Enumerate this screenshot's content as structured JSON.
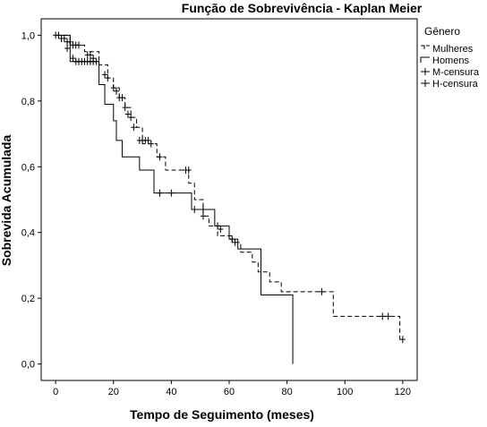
{
  "chart_data": {
    "type": "line",
    "title": "Função de Sobrevivência - Kaplan Meier",
    "xlabel": "Tempo de Seguimento (meses)",
    "ylabel": "Sobrevida Acumulada",
    "xlim": [
      -5,
      125
    ],
    "ylim": [
      -0.05,
      1.05
    ],
    "x_ticks": [
      0,
      20,
      40,
      60,
      80,
      100,
      120
    ],
    "x_tick_labels": [
      "0",
      "20",
      "40",
      "60",
      "80",
      "100",
      "120"
    ],
    "y_ticks": [
      0.0,
      0.2,
      0.4,
      0.6,
      0.8,
      1.0
    ],
    "y_tick_labels": [
      "0,0",
      "0,2",
      "0,4",
      "0,6",
      "0,8",
      "1,0"
    ],
    "legend_title": "Gênero",
    "legend_position": "top-right",
    "grid": false,
    "series": [
      {
        "name": "Mulheres",
        "line": "dashed",
        "x": [
          0,
          5,
          10,
          15,
          18,
          20,
          22,
          24,
          26,
          28,
          30,
          35,
          38,
          46,
          48,
          51,
          53,
          56,
          61,
          64,
          68,
          70,
          74,
          78,
          80,
          96,
          119,
          120
        ],
        "y": [
          1.0,
          0.97,
          0.95,
          0.91,
          0.87,
          0.84,
          0.81,
          0.78,
          0.75,
          0.72,
          0.67,
          0.63,
          0.59,
          0.55,
          0.5,
          0.45,
          0.42,
          0.39,
          0.37,
          0.34,
          0.31,
          0.28,
          0.25,
          0.22,
          0.22,
          0.145,
          0.075,
          0.075
        ]
      },
      {
        "name": "Homens",
        "line": "solid",
        "x": [
          0,
          5,
          15,
          17,
          20,
          21,
          23,
          29,
          34,
          47,
          55,
          60,
          63,
          71,
          82,
          82
        ],
        "y": [
          1.0,
          0.92,
          0.85,
          0.79,
          0.74,
          0.68,
          0.63,
          0.59,
          0.52,
          0.47,
          0.42,
          0.38,
          0.35,
          0.21,
          0.21,
          0.0
        ]
      },
      {
        "name": "M-censura",
        "marker": "+",
        "x": [
          0,
          1,
          2,
          3,
          4,
          5,
          6,
          7,
          8,
          11,
          12,
          13,
          17,
          18,
          20,
          21,
          22,
          23,
          24,
          25,
          26,
          27,
          29,
          30,
          31,
          32,
          33,
          36,
          45,
          46,
          51,
          56,
          62,
          92,
          113,
          115,
          120
        ],
        "y": [
          1.0,
          1.0,
          0.99,
          0.99,
          0.98,
          0.98,
          0.97,
          0.97,
          0.97,
          0.94,
          0.94,
          0.93,
          0.88,
          0.87,
          0.84,
          0.83,
          0.81,
          0.81,
          0.78,
          0.76,
          0.75,
          0.72,
          0.68,
          0.68,
          0.68,
          0.68,
          0.67,
          0.63,
          0.59,
          0.59,
          0.45,
          0.42,
          0.37,
          0.22,
          0.145,
          0.145,
          0.075
        ]
      },
      {
        "name": "H-censura",
        "marker": "+",
        "x": [
          2,
          4,
          6,
          7,
          8,
          9,
          10,
          11,
          12,
          13,
          14,
          36,
          40,
          48,
          51,
          57,
          61
        ],
        "y": [
          0.99,
          0.96,
          0.93,
          0.92,
          0.92,
          0.92,
          0.92,
          0.92,
          0.92,
          0.92,
          0.92,
          0.52,
          0.52,
          0.47,
          0.47,
          0.41,
          0.38
        ]
      }
    ]
  }
}
